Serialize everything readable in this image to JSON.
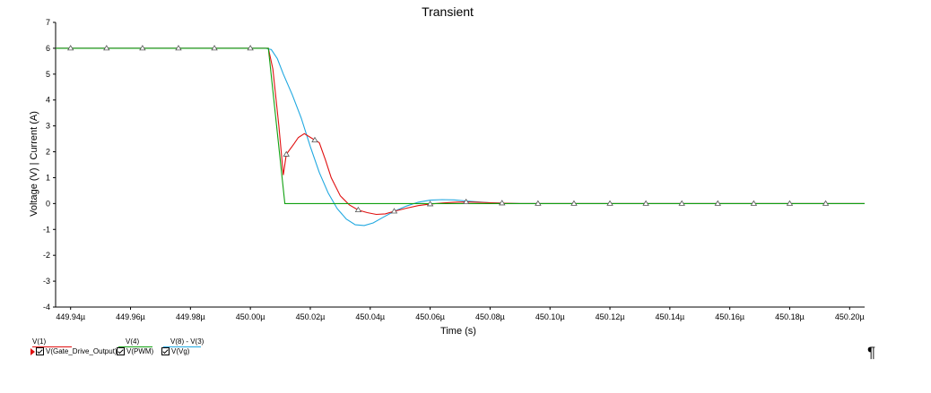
{
  "chart_data": {
    "type": "line",
    "title": "Transient",
    "xlabel": "Time (s)",
    "ylabel": "Voltage (V) | Current (A)",
    "xlim": [
      449.935,
      450.205
    ],
    "ylim": [
      -4,
      7
    ],
    "x_ticks": [
      {
        "value": 449.94,
        "label": "449.94µ"
      },
      {
        "value": 449.96,
        "label": "449.96µ"
      },
      {
        "value": 449.98,
        "label": "449.98µ"
      },
      {
        "value": 450.0,
        "label": "450.00µ"
      },
      {
        "value": 450.02,
        "label": "450.02µ"
      },
      {
        "value": 450.04,
        "label": "450.04µ"
      },
      {
        "value": 450.06,
        "label": "450.06µ"
      },
      {
        "value": 450.08,
        "label": "450.08µ"
      },
      {
        "value": 450.1,
        "label": "450.10µ"
      },
      {
        "value": 450.12,
        "label": "450.12µ"
      },
      {
        "value": 450.14,
        "label": "450.14µ"
      },
      {
        "value": 450.16,
        "label": "450.16µ"
      },
      {
        "value": 450.18,
        "label": "450.18µ"
      },
      {
        "value": 450.2,
        "label": "450.20µ"
      }
    ],
    "y_ticks": [
      {
        "value": 7,
        "label": "7"
      },
      {
        "value": 6,
        "label": "6"
      },
      {
        "value": 5,
        "label": "5"
      },
      {
        "value": 4,
        "label": "4"
      },
      {
        "value": 3,
        "label": "3"
      },
      {
        "value": 2,
        "label": "2"
      },
      {
        "value": 1,
        "label": "1"
      },
      {
        "value": 0,
        "label": "0"
      },
      {
        "value": -1,
        "label": "-1"
      },
      {
        "value": -2,
        "label": "-2"
      },
      {
        "value": -3,
        "label": "-3"
      },
      {
        "value": -4,
        "label": "-4"
      }
    ],
    "grid": false,
    "legend_position": "bottom-left",
    "series": [
      {
        "name": "V(Gate_Drive_Output)",
        "group": "V(1)",
        "color": "#e01010",
        "x": [
          449.935,
          450.0,
          450.006,
          450.0075,
          450.0095,
          450.011,
          450.012,
          450.0145,
          450.016,
          450.018,
          450.0215,
          450.023,
          450.025,
          450.027,
          450.03,
          450.033,
          450.036,
          450.039,
          450.042,
          450.045,
          450.048,
          450.052,
          450.056,
          450.06,
          450.064,
          450.068,
          450.072,
          450.076,
          450.08,
          450.085,
          450.09,
          450.205
        ],
        "y": [
          6,
          6,
          6,
          5.2,
          3.0,
          1.1,
          1.9,
          2.3,
          2.55,
          2.7,
          2.45,
          2.35,
          1.7,
          1.0,
          0.3,
          -0.05,
          -0.25,
          -0.35,
          -0.42,
          -0.4,
          -0.3,
          -0.18,
          -0.08,
          -0.02,
          0.02,
          0.05,
          0.06,
          0.05,
          0.03,
          0.01,
          0.0,
          0.0
        ],
        "markers_x": [
          450.012,
          450.0215,
          450.036,
          450.048,
          450.06,
          450.072,
          450.084
        ]
      },
      {
        "name": "V(PWM)",
        "group": "V(4)",
        "color": "#10a010",
        "x": [
          449.935,
          450.006,
          450.0115,
          450.205
        ],
        "y": [
          6,
          6,
          0,
          0
        ],
        "markers_x": []
      },
      {
        "name": "V(Vg)",
        "group": "V(8) - V(3)",
        "color": "#20a8e0",
        "x": [
          449.935,
          450.0,
          450.005,
          450.007,
          450.009,
          450.011,
          450.014,
          450.017,
          450.02,
          450.023,
          450.026,
          450.029,
          450.032,
          450.035,
          450.038,
          450.041,
          450.044,
          450.048,
          450.052,
          450.056,
          450.06,
          450.064,
          450.068,
          450.072,
          450.076,
          450.08,
          450.085,
          450.09,
          450.205
        ],
        "y": [
          6,
          6,
          6,
          5.95,
          5.6,
          5.0,
          4.2,
          3.3,
          2.2,
          1.2,
          0.4,
          -0.2,
          -0.6,
          -0.82,
          -0.85,
          -0.75,
          -0.55,
          -0.3,
          -0.1,
          0.05,
          0.13,
          0.15,
          0.14,
          0.1,
          0.06,
          0.03,
          0.01,
          0.0,
          0.0
        ],
        "markers_x": [
          449.94,
          449.952,
          449.964,
          449.976,
          449.988,
          450.0,
          450.096,
          450.108,
          450.12,
          450.132,
          450.144,
          450.156,
          450.168,
          450.18,
          450.192
        ]
      }
    ]
  },
  "legend": [
    {
      "group": "V(1)",
      "label": "V(Gate_Drive_Output)",
      "color": "#e01010",
      "selected": true
    },
    {
      "group": "V(4)",
      "label": "V(PWM)",
      "color": "#10a010",
      "selected": false
    },
    {
      "group": "V(8) - V(3)",
      "label": "V(Vg)",
      "color": "#20a8e0",
      "selected": false
    }
  ],
  "pilcrow": "¶"
}
